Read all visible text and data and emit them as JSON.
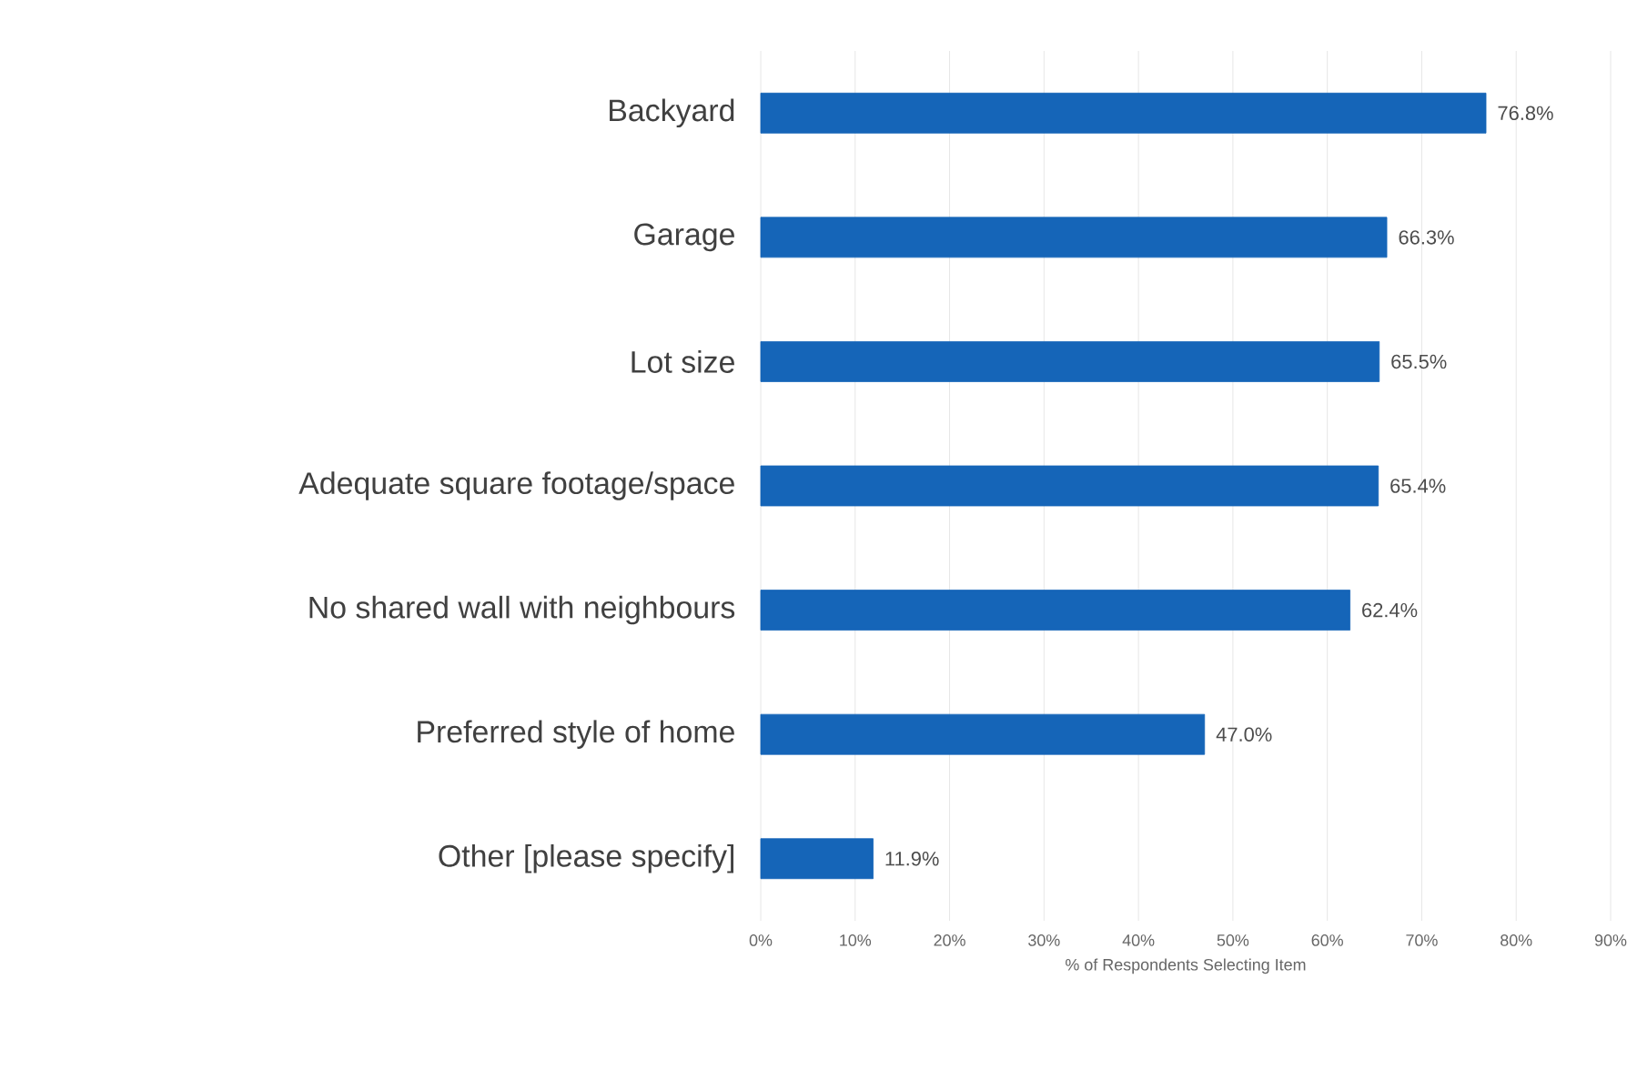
{
  "chart_data": {
    "type": "bar",
    "orientation": "horizontal",
    "xlabel": "% of Respondents Selecting Item",
    "categories": [
      "Backyard",
      "Garage",
      "Lot size",
      "Adequate square footage/space",
      "No shared wall with neighbours",
      "Preferred style of home",
      "Other [please specify]"
    ],
    "values": [
      76.8,
      66.3,
      65.5,
      65.4,
      62.4,
      47.0,
      11.9
    ],
    "value_labels": [
      "76.8%",
      "66.3%",
      "65.5%",
      "65.4%",
      "62.4%",
      "47.0%",
      "11.9%"
    ],
    "color": "#1565b8",
    "xlim": [
      0,
      90
    ],
    "xticks": [
      {
        "value": 0,
        "label": "0%"
      },
      {
        "value": 10,
        "label": "10%"
      },
      {
        "value": 20,
        "label": "20%"
      },
      {
        "value": 30,
        "label": "30%"
      },
      {
        "value": 40,
        "label": "40%"
      },
      {
        "value": 50,
        "label": "50%"
      },
      {
        "value": 60,
        "label": "60%"
      },
      {
        "value": 70,
        "label": "70%"
      },
      {
        "value": 80,
        "label": "80%"
      },
      {
        "value": 90,
        "label": "90%"
      }
    ],
    "grid": "x"
  }
}
